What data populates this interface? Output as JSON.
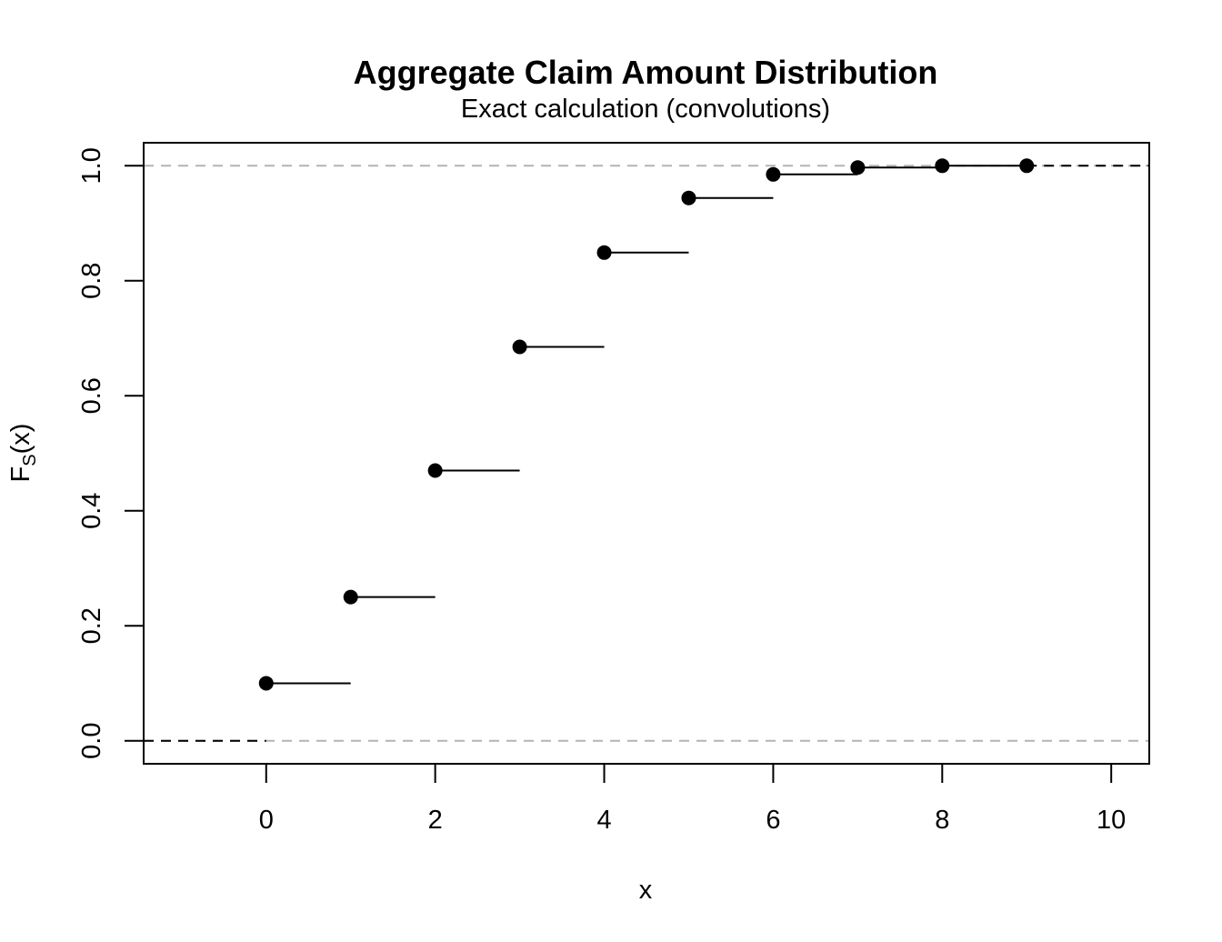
{
  "chart_data": {
    "type": "line",
    "title": "Aggregate Claim Amount Distribution",
    "subtitle": "Exact calculation (convolutions)",
    "xlabel": "x",
    "ylabel_main": "F",
    "ylabel_sub": "S",
    "ylabel_tail": "(x)",
    "xlim": [
      -1.45,
      10.45
    ],
    "ylim": [
      -0.04,
      1.04
    ],
    "x_ticks": [
      0,
      2,
      4,
      6,
      8,
      10
    ],
    "x_tick_labels": [
      "0",
      "2",
      "4",
      "6",
      "8",
      "10"
    ],
    "y_ticks": [
      0.0,
      0.2,
      0.4,
      0.6,
      0.8,
      1.0
    ],
    "y_tick_labels": [
      "0.0",
      "0.2",
      "0.4",
      "0.6",
      "0.8",
      "1.0"
    ],
    "reference_lines_y": [
      0,
      1
    ],
    "reference_line_color": "#b3b3b3",
    "step_points": {
      "x": [
        0,
        1,
        2,
        3,
        4,
        5,
        6,
        7,
        8,
        9
      ],
      "y": [
        0.1,
        0.25,
        0.47,
        0.685,
        0.849,
        0.944,
        0.985,
        0.997,
        1.0,
        1.0
      ]
    },
    "left_tail": {
      "x": [
        -1.45,
        0
      ],
      "y": 0
    },
    "right_tail": {
      "x": [
        9,
        10.45
      ],
      "y": 1
    },
    "point_color": "#000000",
    "grid": false
  }
}
